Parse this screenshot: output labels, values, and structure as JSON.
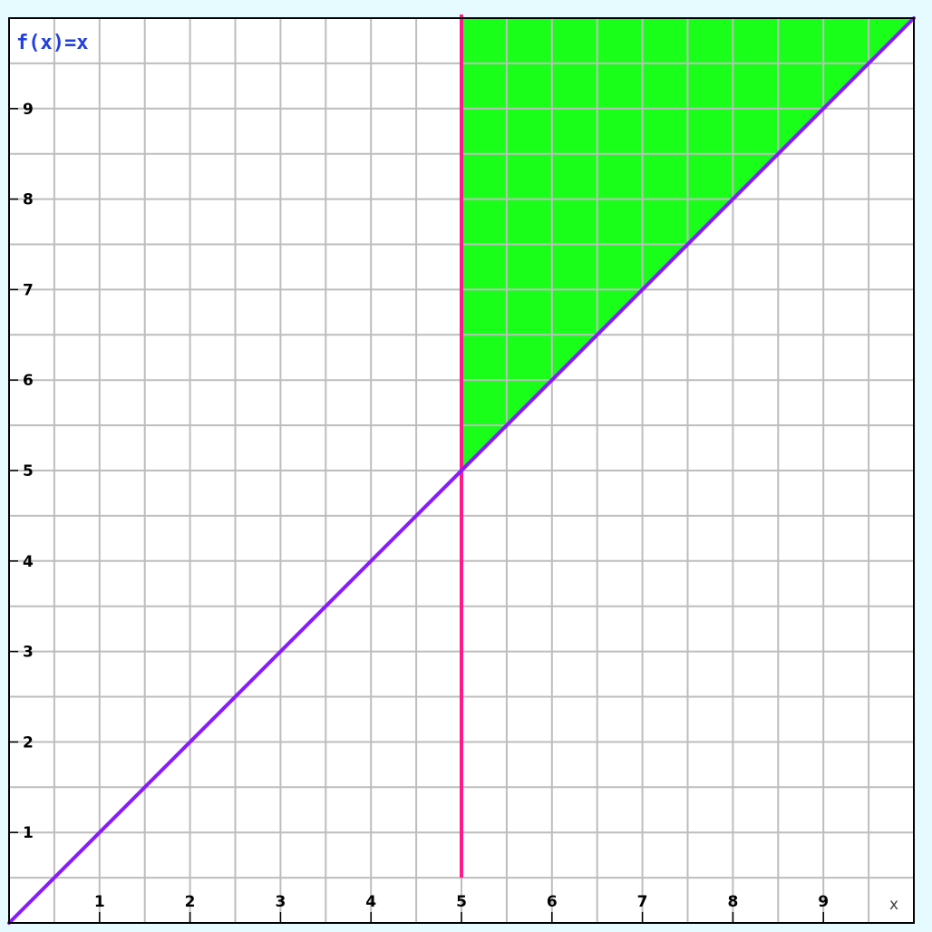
{
  "chart_data": {
    "type": "line",
    "title": "",
    "function_label": "f(x)=x",
    "xlabel": "x",
    "ylabel": "",
    "xlim": [
      0,
      10
    ],
    "ylim": [
      0,
      10
    ],
    "grid": true,
    "grid_step": 0.5,
    "x_ticks": [
      1,
      2,
      3,
      4,
      5,
      6,
      7,
      8,
      9
    ],
    "y_ticks": [
      1,
      2,
      3,
      4,
      5,
      6,
      7,
      8,
      9
    ],
    "series": [
      {
        "x": [
          0,
          10
        ],
        "y": [
          0,
          10
        ],
        "color": "#8a1aff"
      }
    ],
    "vertical_line": {
      "x": 5,
      "y_range": [
        0.5,
        10
      ],
      "color": "#ff1a8c"
    },
    "shaded_region": {
      "polygon": [
        [
          5,
          5
        ],
        [
          5,
          10
        ],
        [
          10,
          10
        ]
      ],
      "color": "#1aff1a"
    }
  },
  "colors": {
    "background": "#e6fbff",
    "plot_background": "#ffffff",
    "grid": "#bdbdbd",
    "frame": "#000000"
  }
}
